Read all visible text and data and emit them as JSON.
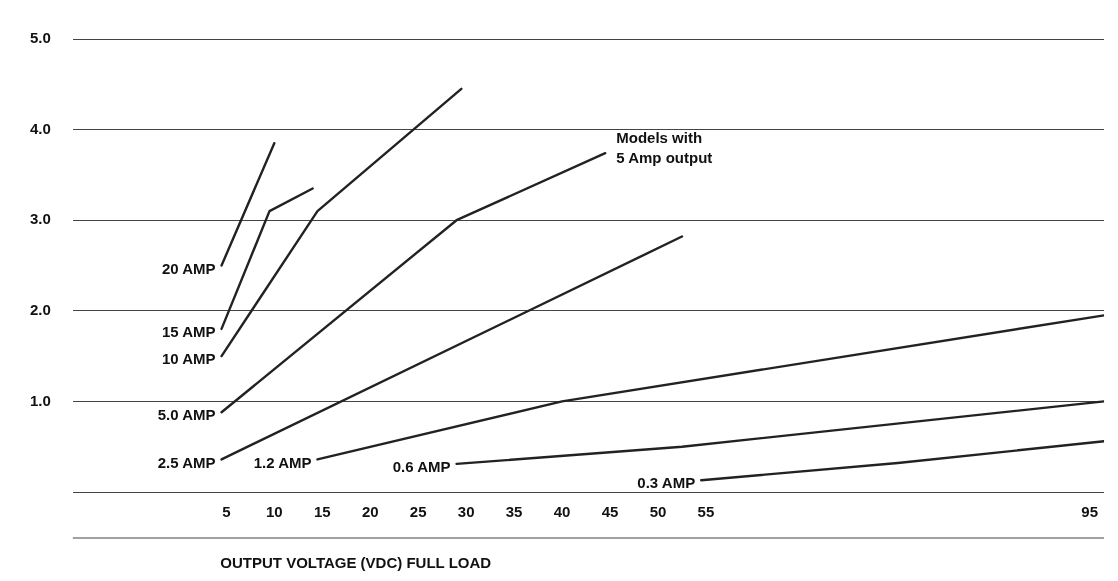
{
  "chart_data": {
    "type": "line",
    "xlabel": "OUTPUT VOLTAGE (VDC) FULL LOAD",
    "xlim": [
      -11,
      96.5
    ],
    "xticks": [
      5,
      10,
      15,
      20,
      25,
      30,
      35,
      40,
      45,
      50,
      55,
      95
    ],
    "ylim": [
      0,
      5
    ],
    "yticks": [
      {
        "value": 0,
        "label": null
      },
      {
        "value": 1,
        "label": "1.0"
      },
      {
        "value": 2,
        "label": "2.0"
      },
      {
        "value": 3,
        "label": "3.0"
      },
      {
        "value": 4,
        "label": "4.0"
      },
      {
        "value": 5,
        "label": "5.0"
      }
    ],
    "grid": "y",
    "legend": false,
    "marker": "none",
    "line_style": "solid",
    "series": [
      {
        "name": "20 AMP",
        "color": "#222222",
        "x": [
          4.5,
          10
        ],
        "values": [
          2.5,
          3.85
        ]
      },
      {
        "name": "15 AMP",
        "color": "#222222",
        "x": [
          4.5,
          9.5,
          14
        ],
        "values": [
          1.8,
          3.1,
          3.35
        ]
      },
      {
        "name": "10 AMP",
        "color": "#222222",
        "x": [
          4.5,
          14.5,
          29.5
        ],
        "values": [
          1.5,
          3.1,
          4.45
        ]
      },
      {
        "name": "5.0 AMP",
        "color": "#222222",
        "x": [
          4.5,
          29,
          44.5
        ],
        "values": [
          0.88,
          3.0,
          3.74
        ]
      },
      {
        "name": "2.5 AMP",
        "color": "#222222",
        "x": [
          4.5,
          52.5
        ],
        "values": [
          0.36,
          2.82
        ]
      },
      {
        "name": "1.2 AMP",
        "color": "#222222",
        "x": [
          14.5,
          40,
          96.5
        ],
        "values": [
          0.36,
          1.0,
          1.95
        ]
      },
      {
        "name": "0.6 AMP",
        "color": "#222222",
        "x": [
          29,
          52.5,
          96.5
        ],
        "values": [
          0.31,
          0.5,
          1.0
        ]
      },
      {
        "name": "0.3 AMP",
        "color": "#222222",
        "x": [
          54.5,
          75,
          96.5
        ],
        "values": [
          0.13,
          0.32,
          0.56
        ]
      }
    ],
    "annotations": [
      {
        "text": "Models with\n5 Amp output",
        "x": 44.5,
        "y": 3.74
      }
    ]
  }
}
